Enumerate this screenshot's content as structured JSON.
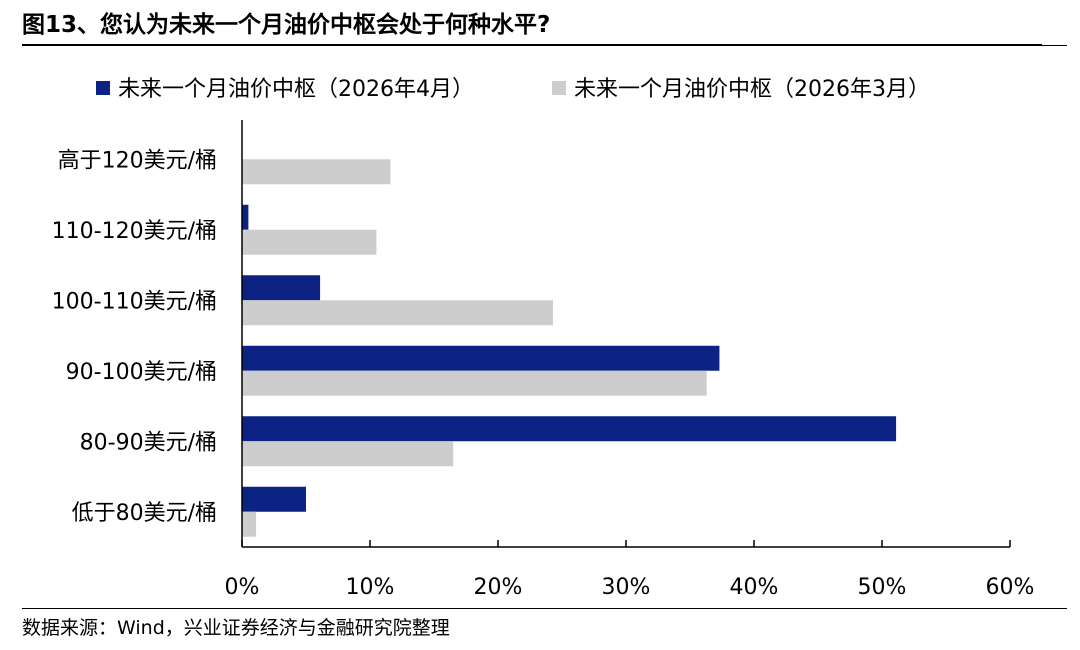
{
  "header": {
    "title": "图13、您认为未来一个月油价中枢会处于何种水平?"
  },
  "footer": {
    "source": "数据来源：Wind，兴业证券经济与金融研究院整理"
  },
  "colors": {
    "series_april": "#0d2384",
    "series_march": "#cdcdcd",
    "axis": "#000000"
  },
  "chart_data": {
    "type": "bar",
    "orientation": "horizontal",
    "title": "",
    "xlabel": "",
    "ylabel": "",
    "categories": [
      "高于120美元/桶",
      "110-120美元/桶",
      "100-110美元/桶",
      "90-100美元/桶",
      "80-90美元/桶",
      "低于80美元/桶"
    ],
    "series": [
      {
        "name": "未来一个月油价中枢（2026年4月）",
        "values": [
          0.0,
          0.5,
          6.1,
          37.3,
          51.1,
          5.0
        ]
      },
      {
        "name": "未来一个月油价中枢（2026年3月）",
        "values": [
          11.6,
          10.5,
          24.3,
          36.3,
          16.5,
          1.1
        ]
      }
    ],
    "xlim": [
      0,
      60
    ],
    "xticks": [
      0,
      10,
      20,
      30,
      40,
      50,
      60
    ],
    "xtick_labels": [
      "0%",
      "10%",
      "20%",
      "30%",
      "40%",
      "50%",
      "60%"
    ],
    "value_unit": "%",
    "legend_position": "top",
    "grid": false
  }
}
